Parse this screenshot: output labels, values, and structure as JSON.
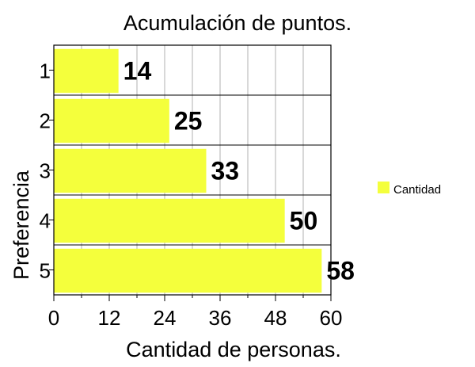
{
  "chart_data": {
    "type": "bar",
    "orientation": "horizontal",
    "title": "Acumulación de puntos.",
    "xlabel": "Cantidad de personas.",
    "ylabel": "Preferencia",
    "categories": [
      "1",
      "2",
      "3",
      "4",
      "5"
    ],
    "series": [
      {
        "name": "Cantidad",
        "values": [
          14,
          25,
          33,
          50,
          58
        ],
        "color": "#f4ff3c"
      }
    ],
    "xlim": [
      0,
      60
    ],
    "xticks": [
      0,
      12,
      24,
      36,
      48,
      60
    ],
    "grid": true,
    "legend_position": "right"
  }
}
